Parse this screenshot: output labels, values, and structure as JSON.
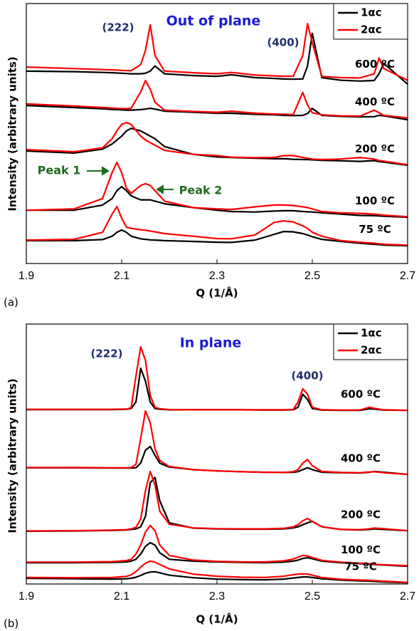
{
  "chart_data": [
    {
      "type": "line",
      "panel_label": "(a)",
      "title": "Out of plane",
      "annotations": [
        "(222)",
        "(400)",
        "Peak 1",
        "Peak 2"
      ],
      "xlabel": "Q (1/Å)",
      "ylabel": "Intensity (arbitrary units)",
      "x": [
        1.9,
        2.0,
        2.06,
        2.08,
        2.09,
        2.1,
        2.11,
        2.12,
        2.14,
        2.15,
        2.16,
        2.17,
        2.19,
        2.25,
        2.3,
        2.33,
        2.38,
        2.42,
        2.44,
        2.46,
        2.48,
        2.49,
        2.5,
        2.52,
        2.56,
        2.6,
        2.63,
        2.64,
        2.65,
        2.7
      ],
      "xlim": [
        1.9,
        2.7
      ],
      "xticks": [
        1.9,
        2.1,
        2.3,
        2.5,
        2.7
      ],
      "ylim": [
        0,
        100
      ],
      "legend": "upper right",
      "curve_labels": [
        "600 ºC",
        "400 ºC",
        "200 ºC",
        "100 ºC",
        "75 ºC"
      ],
      "series": [
        {
          "name": "1αc",
          "color": "#000000",
          "curves": [
            [
              74,
              73.8,
              73.5,
              73.4,
              73.3,
              73.2,
              73.1,
              73,
              73,
              73.2,
              74,
              76,
              73,
              72.3,
              72,
              72.6,
              71.5,
              71.2,
              71,
              70.9,
              71,
              76,
              88.5,
              71.5,
              70.5,
              70.2,
              70.4,
              73,
              77,
              69
            ],
            [
              60.8,
              60,
              59.5,
              59.3,
              59.2,
              59.1,
              59,
              59,
              59.2,
              59.4,
              59.7,
              59.4,
              58.6,
              58.2,
              57.8,
              57.8,
              57.4,
              57.2,
              57,
              56.9,
              57,
              57.7,
              59.7,
              57,
              56.6,
              56.4,
              56.5,
              57,
              56.8,
              55.3
            ],
            [
              43.3,
              42.5,
              44,
              46,
              47.5,
              49,
              51,
              52,
              51,
              50,
              49,
              48,
              45,
              42,
              41,
              40.8,
              40.5,
              40.3,
              40.3,
              40.1,
              40,
              40,
              39.9,
              39.7,
              39.5,
              39.3,
              39.6,
              39.2,
              39,
              37.8
            ],
            [
              20.5,
              20.5,
              22.5,
              25,
              28,
              29.6,
              28,
              26,
              24.5,
              24.5,
              24.5,
              24,
              23,
              21.5,
              20.5,
              20,
              19.8,
              20.2,
              20.3,
              20.3,
              20,
              19.9,
              19.8,
              19.5,
              19,
              18.5,
              18.4,
              18.3,
              18.2,
              17.8
            ],
            [
              8.8,
              8.8,
              9.2,
              10.5,
              12,
              12.9,
              12,
              10.5,
              9.5,
              9.3,
              9.1,
              9,
              8.8,
              8.5,
              8.2,
              8.1,
              9,
              11.2,
              12.3,
              12.2,
              11.5,
              11,
              10.3,
              9.3,
              8.5,
              7.8,
              7.4,
              7.3,
              7.1,
              6.8
            ]
          ]
        },
        {
          "name": "2αc",
          "color": "#ff0000",
          "curves": [
            [
              75.6,
              75,
              74.6,
              74.5,
              74.4,
              74.3,
              74.2,
              74.2,
              76.5,
              82,
              91.8,
              80,
              74,
              73.4,
              73,
              73.5,
              72.5,
              72.2,
              72,
              72,
              80,
              92.3,
              85,
              72,
              71.5,
              71.4,
              73,
              79,
              75,
              70.5
            ],
            [
              61.4,
              60.6,
              60,
              59.8,
              59.7,
              59.6,
              59.6,
              59.7,
              66,
              70.4,
              67,
              62,
              59,
              58.5,
              58.2,
              58.6,
              57.8,
              57.5,
              57.4,
              57.3,
              65.8,
              61,
              58,
              57.2,
              56.8,
              56.7,
              59,
              58,
              57,
              56
            ],
            [
              43.8,
              43,
              44.5,
              48,
              51,
              53.5,
              54.2,
              53.5,
              49,
              47.5,
              46.5,
              45.5,
              43.5,
              42,
              41.5,
              40.9,
              40.7,
              40.8,
              41.5,
              41.5,
              40.8,
              40.5,
              40.2,
              40,
              40.2,
              40.8,
              40.2,
              39.6,
              39.4,
              38
            ],
            [
              20.5,
              21,
              25,
              35,
              38.9,
              35,
              29,
              27,
              30,
              30.7,
              30,
              28,
              24,
              21.5,
              21,
              20.8,
              21.8,
              22.5,
              22.5,
              22.3,
              21.8,
              21.5,
              21,
              20,
              19.5,
              19.3,
              19,
              18.8,
              18.6,
              18
            ],
            [
              9,
              9.3,
              12,
              19,
              21.9,
              17.5,
              14,
              13.5,
              13,
              12.8,
              12.5,
              12.2,
              11.5,
              10.5,
              9.6,
              9.5,
              11,
              15.8,
              16.4,
              16,
              14.5,
              13.5,
              12,
              10.5,
              8.8,
              8.2,
              7.8,
              7.6,
              7.4,
              7
            ]
          ]
        }
      ]
    },
    {
      "type": "line",
      "panel_label": "(b)",
      "title": "In plane",
      "annotations": [
        "(222)",
        "(400)"
      ],
      "xlabel": "Q (1/Å)",
      "ylabel": "Intensity (arbitrary units)",
      "x": [
        1.9,
        2.0,
        2.08,
        2.11,
        2.12,
        2.13,
        2.14,
        2.15,
        2.16,
        2.17,
        2.18,
        2.2,
        2.25,
        2.3,
        2.35,
        2.4,
        2.44,
        2.46,
        2.47,
        2.48,
        2.49,
        2.5,
        2.52,
        2.56,
        2.6,
        2.62,
        2.63,
        2.65,
        2.7
      ],
      "xlim": [
        1.9,
        2.7
      ],
      "xticks": [
        1.9,
        2.1,
        2.3,
        2.5,
        2.7
      ],
      "ylim": [
        0,
        100
      ],
      "legend": "upper right",
      "curve_labels": [
        "600 ºC",
        "400 ºC",
        "200 ºC",
        "100 ºC",
        "75 ºC"
      ],
      "series": [
        {
          "name": "1αc",
          "color": "#000000",
          "curves": [
            [
              67.1,
              67.1,
              67.1,
              67.2,
              67.5,
              70,
              83,
              78,
              70,
              67.5,
              67.2,
              67,
              67,
              67,
              67,
              66.9,
              66.9,
              67,
              68,
              73,
              71,
              67.5,
              66.9,
              66.8,
              66.8,
              67.4,
              67.3,
              66.9,
              66.8
            ],
            [
              44.7,
              44.7,
              44.6,
              44.6,
              44.6,
              44.7,
              46.5,
              51.5,
              52.9,
              49.5,
              46.5,
              45,
              44,
              43.5,
              43.2,
              43,
              42.9,
              43,
              43.2,
              44,
              44.7,
              44,
              43,
              42.8,
              42.7,
              43,
              43.3,
              43,
              42.2
            ],
            [
              20.3,
              20.4,
              20.6,
              20.8,
              21,
              21.2,
              22,
              26,
              39,
              41,
              32,
              23.5,
              21.5,
              21.2,
              21.1,
              21.1,
              21.2,
              21.6,
              22,
              22.8,
              23.5,
              24.1,
              22,
              21,
              20.8,
              21,
              21.2,
              21,
              20.5
            ],
            [
              8.2,
              8.2,
              8.3,
              8.5,
              8.8,
              9.5,
              11.5,
              14.5,
              15.9,
              15,
              12,
              9.5,
              8.8,
              8.5,
              8.3,
              8.2,
              8.4,
              8.8,
              9.2,
              9.8,
              10.1,
              9.7,
              8.8,
              8.2,
              7.8,
              7.6,
              7.5,
              7.3,
              6.8
            ],
            [
              2.2,
              2,
              1.9,
              2,
              2.2,
              2.6,
              3.3,
              4.1,
              4.6,
              4.7,
              4.3,
              3.4,
              2.4,
              1.9,
              1.7,
              1.6,
              1.9,
              2.3,
              2.5,
              2.7,
              2.7,
              2.5,
              2,
              1.5,
              1.2,
              1.1,
              1,
              0.8,
              0.5
            ]
          ]
        },
        {
          "name": "2αc",
          "color": "#ff0000",
          "curves": [
            [
              67.2,
              67.2,
              67.2,
              67.3,
              67.8,
              80,
              91.2,
              86,
              72.5,
              68,
              67.4,
              67.1,
              67,
              67,
              67,
              67,
              67,
              67.1,
              70,
              75.1,
              73,
              68,
              67,
              66.9,
              66.9,
              68,
              67.6,
              67,
              66.8
            ],
            [
              44.8,
              44.8,
              44.7,
              44.7,
              44.8,
              46,
              56,
              66.6,
              62,
              52,
              47.5,
              45.2,
              44,
              43.5,
              43.2,
              43,
              42.9,
              43.2,
              44,
              46.5,
              47.9,
              45.5,
              43.3,
              42.9,
              42.8,
              43.1,
              43.2,
              42.8,
              42.2
            ],
            [
              20.4,
              20.5,
              20.7,
              20.9,
              21.2,
              21.8,
              25,
              36,
              43.3,
              38,
              28,
              23,
              21.6,
              21.3,
              21.2,
              21.2,
              21.4,
              22,
              22.8,
              24.3,
              25.2,
              24,
              22,
              21,
              20.9,
              21.2,
              21.5,
              21.3,
              20.5
            ],
            [
              8.4,
              8.4,
              8.6,
              9,
              9.5,
              11.5,
              15,
              20,
              22.5,
              20.5,
              15,
              11,
              9.2,
              8.7,
              8.5,
              8.5,
              8.9,
              9.6,
              10.3,
              11,
              10.8,
              10.2,
              9.1,
              8.4,
              8,
              7.8,
              7.6,
              7.4,
              7
            ],
            [
              2.5,
              2.4,
              2.5,
              2.9,
              3.5,
              4.8,
              6.5,
              8,
              8.8,
              8.4,
              7.5,
              5.8,
              3.8,
              3,
              2.6,
              2.5,
              3,
              3.6,
              3.8,
              3.9,
              3.8,
              3.4,
              2.5,
              1.8,
              1.5,
              1.4,
              1.3,
              1.1,
              0.6
            ]
          ]
        }
      ]
    }
  ]
}
